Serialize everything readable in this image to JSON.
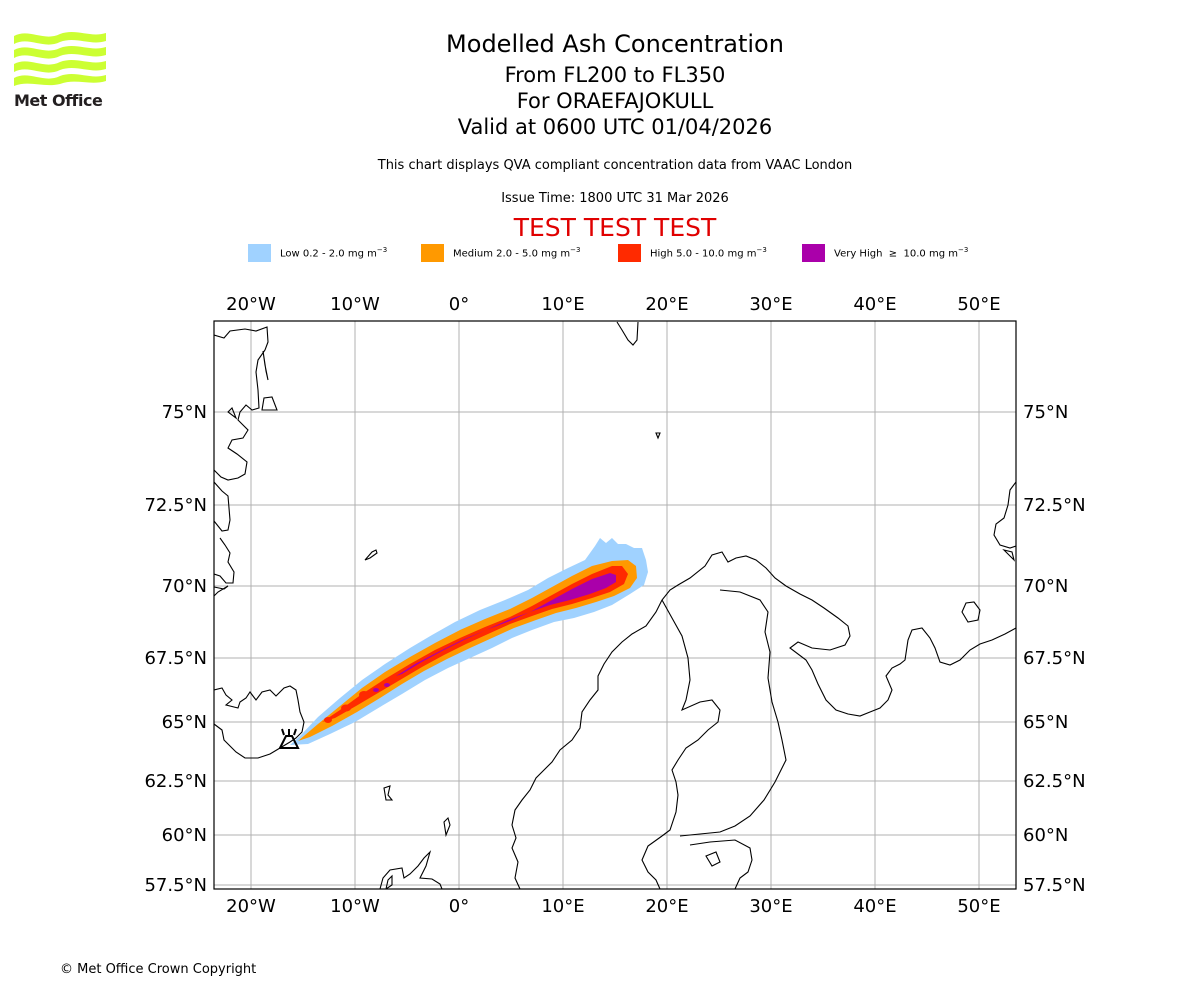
{
  "logo": {
    "text": "Met Office",
    "color": "#ccff33"
  },
  "header": {
    "title": "Modelled Ash Concentration",
    "levels": "From FL200 to FL350",
    "volcano": "For ORAEFAJOKULL",
    "valid": "Valid at 0600 UTC 01/04/2026",
    "subtitle": "This chart displays QVA compliant concentration data from VAAC London",
    "issue_time": "Issue Time: 1800 UTC 31 Mar 2026",
    "test_banner": "TEST TEST TEST",
    "test_color": "#e00000"
  },
  "legend": [
    {
      "label": "Low 0.2 - 2.0 mg m",
      "exp": "−3",
      "color": "#a0d2ff"
    },
    {
      "label": "Medium 2.0 - 5.0 mg m",
      "exp": "−3",
      "color": "#ff9900"
    },
    {
      "label": "High 5.0 - 10.0 mg m",
      "exp": "−3",
      "color": "#ff2a00"
    },
    {
      "label": "Very High  ≥  10.0 mg m",
      "exp": "−3",
      "color": "#aa00aa"
    }
  ],
  "map": {
    "lon_ticks": [
      "20°W",
      "10°W",
      "0°",
      "10°E",
      "20°E",
      "30°E",
      "40°E",
      "50°E"
    ],
    "lon_values": [
      -20,
      -10,
      0,
      10,
      20,
      30,
      40,
      50
    ],
    "lat_ticks": [
      "75°N",
      "72.5°N",
      "70°N",
      "67.5°N",
      "65°N",
      "62.5°N",
      "60°N",
      "57.5°N"
    ],
    "lat_values": [
      75,
      72.5,
      70,
      67.5,
      65,
      62.5,
      60,
      57.5
    ],
    "grid_color": "#b0b0b0",
    "volcano_marker": "volcano-icon"
  },
  "footer": {
    "copyright": "© Met Office Crown Copyright"
  }
}
